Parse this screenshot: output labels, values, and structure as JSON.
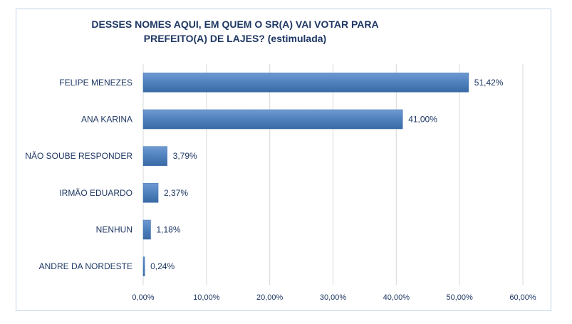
{
  "chart_data": {
    "type": "bar",
    "orientation": "horizontal",
    "title_line1": "DESSES NOMES AQUI, EM QUEM O SR(A) VAI VOTAR PARA",
    "title_line2": "PREFEITO(A) DE LAJES? (estimulada)",
    "categories": [
      "FELIPE MENEZES",
      "ANA KARINA",
      "NÃO SOUBE RESPONDER",
      "IRMÃO EDUARDO",
      "NENHUN",
      "ANDRE DA NORDESTE"
    ],
    "values": [
      51.42,
      41.0,
      3.79,
      2.37,
      1.18,
      0.24
    ],
    "value_labels": [
      "51,42%",
      "41,00%",
      "3,79%",
      "2,37%",
      "1,18%",
      "0,24%"
    ],
    "xlim": [
      0,
      60
    ],
    "ticks": [
      0,
      10,
      20,
      30,
      40,
      50,
      60
    ],
    "tick_labels": [
      "0,00%",
      "10,00%",
      "20,00%",
      "30,00%",
      "40,00%",
      "50,00%",
      "60,00%"
    ],
    "grid": true,
    "bar_color": "#4f81bd",
    "legend": "none"
  }
}
